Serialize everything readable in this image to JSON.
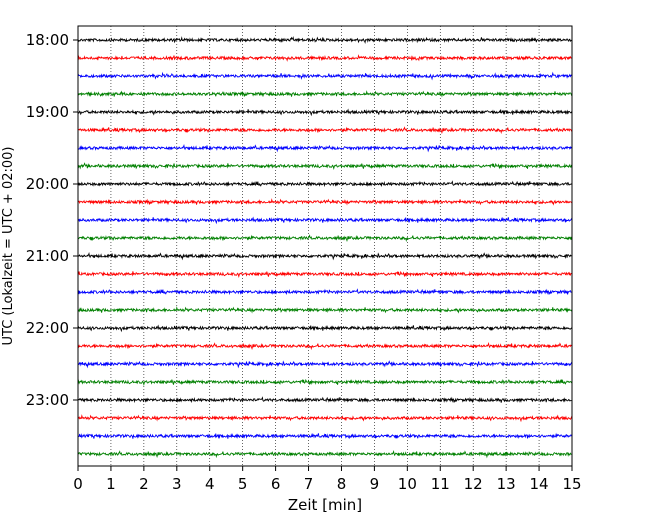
{
  "chart_data": {
    "type": "line",
    "subtype": "seismic-helicorder",
    "title": "",
    "xlabel": "Zeit  [min]",
    "ylabel": "UTC (Lokalzeit = UTC + 02:00)",
    "xlim": [
      0,
      15
    ],
    "x_ticks": [
      0,
      1,
      2,
      3,
      4,
      5,
      6,
      7,
      8,
      9,
      10,
      11,
      12,
      13,
      14,
      15
    ],
    "x_tick_labels": [
      "0",
      "1",
      "2",
      "3",
      "4",
      "5",
      "6",
      "7",
      "8",
      "9",
      "10",
      "11",
      "12",
      "13",
      "14",
      "15"
    ],
    "y_tick_labels": [
      "18:00",
      "19:00",
      "20:00",
      "21:00",
      "22:00",
      "23:00"
    ],
    "trace_interval_minutes": 15,
    "trace_count": 24,
    "trace_start_labels": [
      "18:00",
      "18:15",
      "18:30",
      "18:45",
      "19:00",
      "19:15",
      "19:30",
      "19:45",
      "20:00",
      "20:15",
      "20:30",
      "20:45",
      "21:00",
      "21:15",
      "21:30",
      "21:45",
      "22:00",
      "22:15",
      "22:30",
      "22:45",
      "23:00",
      "23:15",
      "23:30",
      "23:45"
    ],
    "trace_colors": [
      "#000000",
      "#ff0000",
      "#0000ff",
      "#008000"
    ],
    "grid": "vertical dotted lines at each minute",
    "legend": "none"
  }
}
